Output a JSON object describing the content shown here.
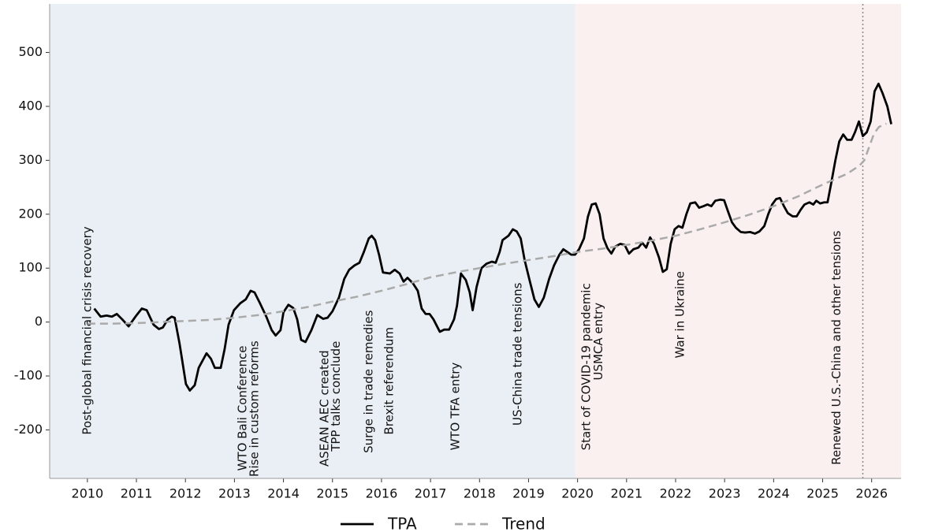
{
  "chart_data": {
    "type": "line",
    "xlim": [
      2009.23,
      2026.6
    ],
    "ylim": [
      -290,
      590
    ],
    "xticks": [
      2010,
      2011,
      2012,
      2013,
      2014,
      2015,
      2016,
      2017,
      2018,
      2019,
      2020,
      2021,
      2022,
      2023,
      2024,
      2025,
      2026
    ],
    "yticks": [
      -200,
      -100,
      0,
      100,
      200,
      300,
      400,
      500
    ],
    "shaded_regions": [
      {
        "start": 2009.23,
        "end": 2019.95,
        "color": "#e9eff5"
      },
      {
        "start": 2019.95,
        "end": 2026.6,
        "color": "#fbf0f0"
      }
    ],
    "vline": {
      "x": 2025.82,
      "color": "#888888"
    },
    "series": [
      {
        "name": "TPA",
        "color": "#000000",
        "dashed": false,
        "x": [
          2010.14,
          2010.27,
          2010.39,
          2010.5,
          2010.6,
          2010.71,
          2010.84,
          2010.98,
          2011.11,
          2011.21,
          2011.35,
          2011.46,
          2011.54,
          2011.64,
          2011.72,
          2011.78,
          2011.88,
          2012.01,
          2012.09,
          2012.19,
          2012.27,
          2012.43,
          2012.52,
          2012.6,
          2012.72,
          2012.8,
          2012.88,
          2012.99,
          2013.12,
          2013.23,
          2013.33,
          2013.41,
          2013.52,
          2013.65,
          2013.76,
          2013.84,
          2013.94,
          2014.0,
          2014.1,
          2014.2,
          2014.28,
          2014.36,
          2014.45,
          2014.57,
          2014.69,
          2014.81,
          2014.9,
          2015.0,
          2015.13,
          2015.24,
          2015.34,
          2015.45,
          2015.55,
          2015.64,
          2015.74,
          2015.8,
          2015.87,
          2015.95,
          2016.03,
          2016.17,
          2016.27,
          2016.37,
          2016.45,
          2016.53,
          2016.64,
          2016.74,
          2016.82,
          2016.9,
          2016.98,
          2017.06,
          2017.19,
          2017.28,
          2017.38,
          2017.48,
          2017.54,
          2017.62,
          2017.72,
          2017.8,
          2017.86,
          2017.94,
          2018.04,
          2018.14,
          2018.25,
          2018.33,
          2018.41,
          2018.47,
          2018.59,
          2018.68,
          2018.76,
          2018.84,
          2018.92,
          2019.02,
          2019.12,
          2019.21,
          2019.31,
          2019.42,
          2019.52,
          2019.63,
          2019.71,
          2019.79,
          2019.87,
          2019.95,
          2020.03,
          2020.13,
          2020.21,
          2020.29,
          2020.37,
          2020.45,
          2020.53,
          2020.61,
          2020.69,
          2020.77,
          2020.87,
          2020.96,
          2021.05,
          2021.14,
          2021.24,
          2021.32,
          2021.4,
          2021.48,
          2021.56,
          2021.66,
          2021.74,
          2021.82,
          2021.9,
          2021.98,
          2022.06,
          2022.14,
          2022.22,
          2022.3,
          2022.4,
          2022.48,
          2022.57,
          2022.65,
          2022.73,
          2022.81,
          2022.91,
          2022.99,
          2023.07,
          2023.15,
          2023.23,
          2023.33,
          2023.42,
          2023.52,
          2023.62,
          2023.71,
          2023.81,
          2023.89,
          2023.97,
          2024.05,
          2024.13,
          2024.21,
          2024.29,
          2024.39,
          2024.47,
          2024.55,
          2024.63,
          2024.73,
          2024.81,
          2024.87,
          2024.95,
          2025.03,
          2025.1,
          2025.18,
          2025.26,
          2025.34,
          2025.42,
          2025.5,
          2025.59,
          2025.66,
          2025.74,
          2025.82,
          2025.9,
          2025.98,
          2026.06,
          2026.14,
          2026.22,
          2026.32,
          2026.4
        ],
        "values": [
          25,
          10,
          12,
          10,
          15,
          5,
          -8,
          10,
          25,
          22,
          -5,
          -13,
          -10,
          5,
          10,
          8,
          -40,
          -115,
          -127,
          -117,
          -85,
          -58,
          -68,
          -85,
          -85,
          -50,
          -5,
          22,
          35,
          42,
          58,
          55,
          35,
          10,
          -15,
          -25,
          -15,
          18,
          32,
          26,
          5,
          -33,
          -37,
          -15,
          13,
          6,
          8,
          20,
          45,
          80,
          97,
          105,
          110,
          130,
          155,
          160,
          152,
          125,
          92,
          90,
          97,
          90,
          75,
          82,
          72,
          58,
          25,
          15,
          15,
          5,
          -18,
          -14,
          -14,
          5,
          30,
          90,
          78,
          55,
          22,
          65,
          100,
          108,
          112,
          110,
          130,
          152,
          160,
          172,
          168,
          155,
          115,
          78,
          42,
          28,
          45,
          80,
          105,
          125,
          135,
          130,
          125,
          125,
          135,
          155,
          195,
          218,
          220,
          200,
          155,
          137,
          127,
          140,
          145,
          143,
          127,
          135,
          138,
          147,
          138,
          157,
          145,
          120,
          93,
          98,
          145,
          172,
          178,
          175,
          200,
          220,
          222,
          212,
          215,
          218,
          215,
          225,
          227,
          226,
          205,
          185,
          175,
          167,
          166,
          167,
          164,
          168,
          178,
          200,
          218,
          228,
          230,
          215,
          202,
          196,
          196,
          208,
          218,
          222,
          218,
          225,
          220,
          222,
          222,
          260,
          300,
          335,
          348,
          338,
          338,
          352,
          372,
          345,
          352,
          372,
          428,
          442,
          425,
          400,
          367
        ]
      },
      {
        "name": "Trend",
        "color": "#aaaaaa",
        "dashed": true,
        "x": [
          2010.0,
          2010.5,
          2011,
          2011.5,
          2012,
          2012.5,
          2013,
          2013.5,
          2014,
          2014.5,
          2015,
          2015.5,
          2016,
          2016.5,
          2017,
          2017.5,
          2018,
          2018.5,
          2019,
          2019.5,
          2020,
          2020.5,
          2021,
          2021.5,
          2022,
          2022.5,
          2023,
          2023.5,
          2024,
          2024.5,
          2025,
          2025.25,
          2025.5,
          2025.75,
          2025.85,
          2025.95,
          2026.05,
          2026.15,
          2026.3
        ],
        "values": [
          -3,
          -3,
          -2,
          0,
          2,
          4,
          8,
          13,
          20,
          28,
          38,
          47,
          58,
          70,
          83,
          92,
          100,
          108,
          115,
          122,
          130,
          136,
          143,
          151,
          160,
          172,
          185,
          199,
          215,
          233,
          255,
          265,
          275,
          290,
          300,
          325,
          350,
          362,
          368
        ]
      }
    ],
    "annotations": [
      {
        "text": "Post-global financial crisis recovery",
        "x": 2010.0,
        "y": -209,
        "color": "#5a8bb6"
      },
      {
        "text": "WTO Bali Conference",
        "x": 2013.17,
        "y": -276,
        "color": "#5a8bb6"
      },
      {
        "text": "Rise in custom reforms",
        "x": 2013.41,
        "y": -287,
        "color": "#5a8bb6"
      },
      {
        "text": "ASEAN AEC created",
        "x": 2014.84,
        "y": -268,
        "color": "#5a8bb6"
      },
      {
        "text": "TPP talks conclude",
        "x": 2015.08,
        "y": -240,
        "color": "#5a8bb6"
      },
      {
        "text": "Surge in trade remedies",
        "x": 2015.74,
        "y": -243,
        "color": "#c0272d"
      },
      {
        "text": "Brexit referendum",
        "x": 2016.16,
        "y": -209,
        "color": "#c0272d"
      },
      {
        "text": "WTO TFA entry",
        "x": 2017.51,
        "y": -238,
        "color": "#5a8bb6"
      },
      {
        "text": "US-China trade tensions",
        "x": 2018.78,
        "y": -192,
        "color": "#c0272d"
      },
      {
        "text": "Start of COVID-19 pandemic",
        "x": 2020.18,
        "y": -238,
        "color": "#c0272d"
      },
      {
        "text": "USMCA entry",
        "x": 2020.43,
        "y": -108,
        "color": "#c0272d"
      },
      {
        "text": "War in Ukraine",
        "x": 2022.1,
        "y": -67,
        "color": "#c0272d"
      },
      {
        "text": "Renewed U.S.-China and other tensions",
        "x": 2025.29,
        "y": -265,
        "color": "#c0272d"
      }
    ]
  }
}
